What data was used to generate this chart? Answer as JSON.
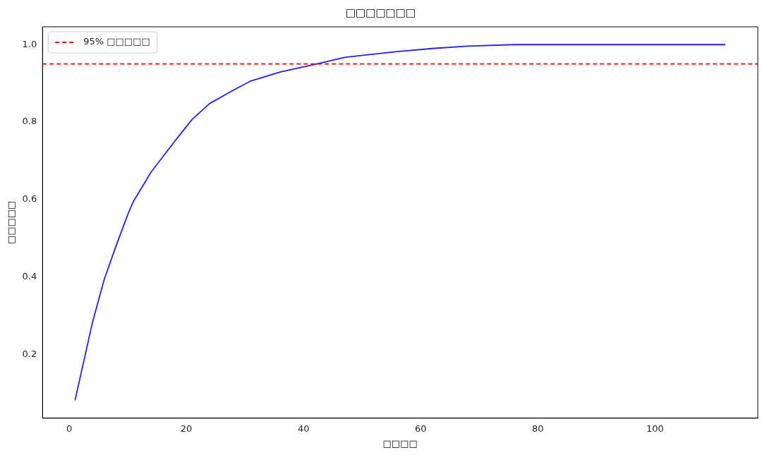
{
  "chart_data": {
    "type": "line",
    "title": "□□□□□□□",
    "xlabel": "□□□□",
    "ylabel": "□□□□□",
    "series": [
      {
        "color": "#1f1fff",
        "x": [
          1,
          4,
          6,
          8,
          10,
          11,
          14,
          18,
          21,
          24,
          28,
          31,
          36,
          42,
          47,
          56,
          62,
          68,
          76,
          112
        ],
        "values": [
          0.081,
          0.284,
          0.394,
          0.48,
          0.561,
          0.596,
          0.671,
          0.75,
          0.807,
          0.848,
          0.882,
          0.906,
          0.929,
          0.949,
          0.967,
          0.982,
          0.99,
          0.996,
          1.0,
          1.0
        ]
      }
    ],
    "xlim": [
      -4.55,
      117.55
    ],
    "xticks": [
      0,
      20,
      40,
      60,
      80,
      100
    ],
    "ylim": [
      0.035,
      1.046
    ],
    "yticks": [
      0.2,
      0.4,
      0.6,
      0.8,
      {
        "value": 1.0,
        "label": "1.0"
      }
    ],
    "ref_lines": [
      {
        "axis": "y",
        "value": 0.95,
        "label": "95% □□□□□",
        "color": "#ff0000",
        "line_style": "dashed"
      }
    ],
    "grid": false,
    "legend": "top left",
    "marker": "none",
    "line_style": "solid"
  }
}
